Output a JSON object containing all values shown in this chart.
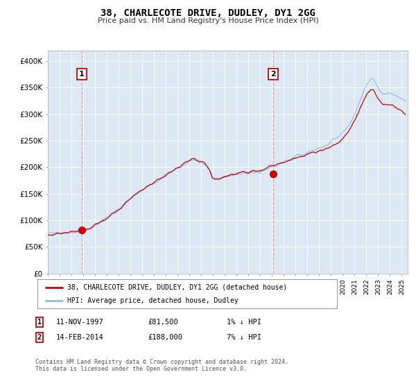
{
  "title": "38, CHARLECOTE DRIVE, DUDLEY, DY1 2GG",
  "subtitle": "Price paid vs. HM Land Registry's House Price Index (HPI)",
  "bg_color": "#dce9f5",
  "fig_bg_color": "#ffffff",
  "hpi_color": "#8bbfe8",
  "price_color": "#cc0000",
  "marker_color": "#cc0000",
  "vline_color": "#ff8888",
  "ylim": [
    0,
    420000
  ],
  "yticks": [
    0,
    50000,
    100000,
    150000,
    200000,
    250000,
    300000,
    350000,
    400000
  ],
  "ytick_labels": [
    "£0",
    "£50K",
    "£100K",
    "£150K",
    "£200K",
    "£250K",
    "£300K",
    "£350K",
    "£400K"
  ],
  "xstart": 1995.0,
  "xend": 2025.5,
  "transaction1_year": 1997.87,
  "transaction1_price": 81500,
  "transaction2_year": 2014.12,
  "transaction2_price": 188000,
  "legend_label1": "38, CHARLECOTE DRIVE, DUDLEY, DY1 2GG (detached house)",
  "legend_label2": "HPI: Average price, detached house, Dudley",
  "footer": "Contains HM Land Registry data © Crown copyright and database right 2024.\nThis data is licensed under the Open Government Licence v3.0.",
  "table_row1": [
    "1",
    "11-NOV-1997",
    "£81,500",
    "1% ↓ HPI"
  ],
  "table_row2": [
    "2",
    "14-FEB-2014",
    "£188,000",
    "7% ↓ HPI"
  ]
}
